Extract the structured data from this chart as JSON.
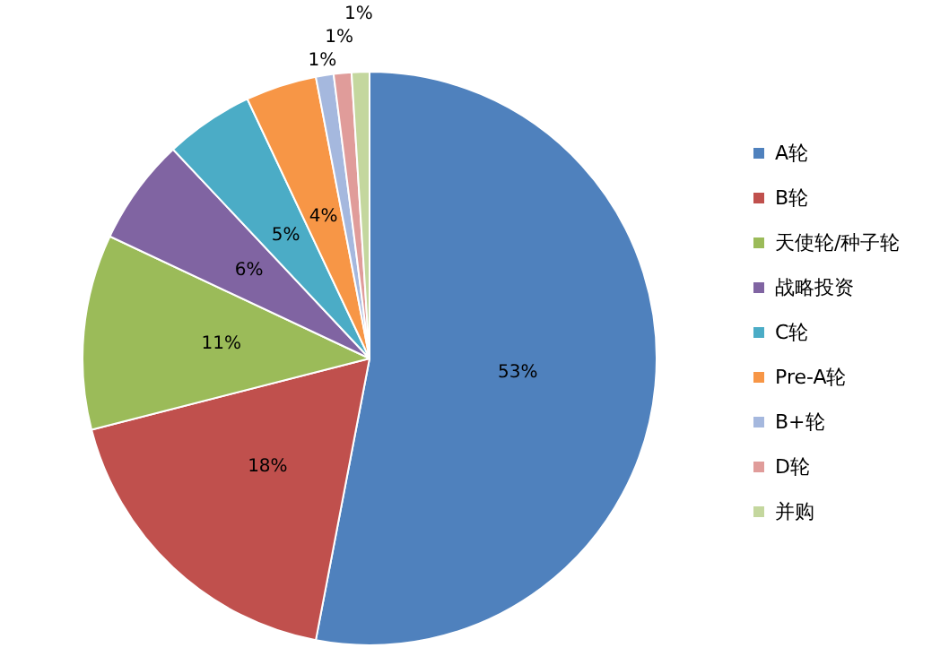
{
  "chart_data": {
    "type": "pie",
    "categories": [
      "A轮",
      "B轮",
      "天使轮/种子轮",
      "战略投资",
      "C轮",
      "Pre-A轮",
      "B+轮",
      "D轮",
      "并购"
    ],
    "values": [
      53,
      18,
      11,
      6,
      5,
      4,
      1,
      1,
      1
    ],
    "colors": [
      "#4f81bd",
      "#c0504d",
      "#9bbb59",
      "#8064a2",
      "#4bacc6",
      "#f79646",
      "#a5b8de",
      "#e09c9a",
      "#c4d79e"
    ],
    "value_labels": [
      "53%",
      "18%",
      "11%",
      "6%",
      "5%",
      "4%",
      "1%",
      "1%",
      "1%"
    ],
    "legend": "right"
  }
}
